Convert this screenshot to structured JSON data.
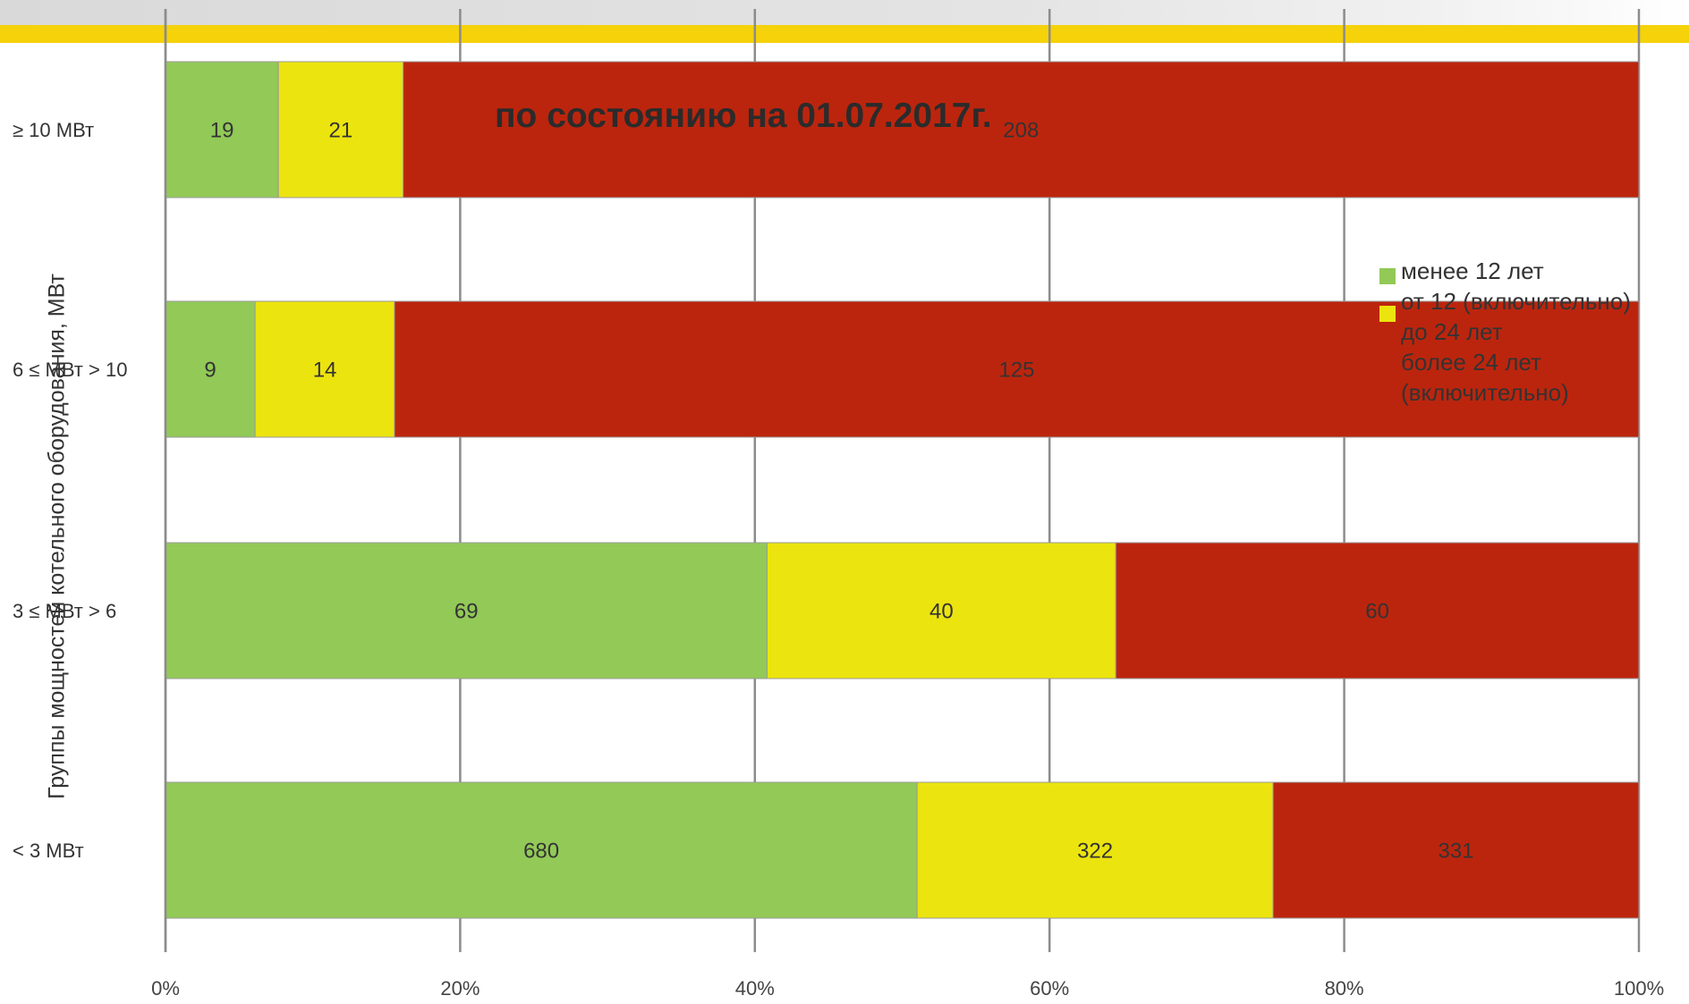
{
  "chart_data": {
    "type": "bar",
    "orientation": "horizontal",
    "stacked": "percent",
    "title": "по состоянию на 01.07.2017г.",
    "ylabel": "Группы мощностей котельного оборудования, МВт",
    "categories": [
      "≥ 10 МВт",
      "6 ≤ МВт > 10",
      "3 ≤ МВт > 6",
      "< 3 МВт"
    ],
    "series": [
      {
        "name": "менее 12 лет",
        "color": "#92c957",
        "values": [
          19,
          9,
          69,
          680
        ],
        "labels": [
          "19",
          "9",
          "69",
          "680"
        ]
      },
      {
        "name": "от 12 (включительно) до 24 лет",
        "color": "#ece40f",
        "values": [
          21,
          14,
          40,
          322
        ],
        "labels": [
          "21",
          "14",
          "40",
          "322"
        ]
      },
      {
        "name": "более 24 лет (включительно)",
        "color": "#bc250d",
        "values": [
          208,
          125,
          60,
          331
        ],
        "labels": [
          "208",
          "125",
          "60",
          "331"
        ]
      }
    ],
    "x_ticks": [
      "0%",
      "20%",
      "40%",
      "60%",
      "80%",
      "100%"
    ],
    "xlim": [
      0,
      100
    ],
    "grid": true,
    "legend_position": "right"
  },
  "legend_items": [
    {
      "lines": [
        "менее 12 лет"
      ],
      "color": "#92c957"
    },
    {
      "lines": [
        "от 12 (включительно)",
        "до 24 лет"
      ],
      "color": "#ece40f"
    },
    {
      "lines": [
        "более 24  лет",
        "(включительно)"
      ],
      "color": "#bc250d"
    }
  ]
}
